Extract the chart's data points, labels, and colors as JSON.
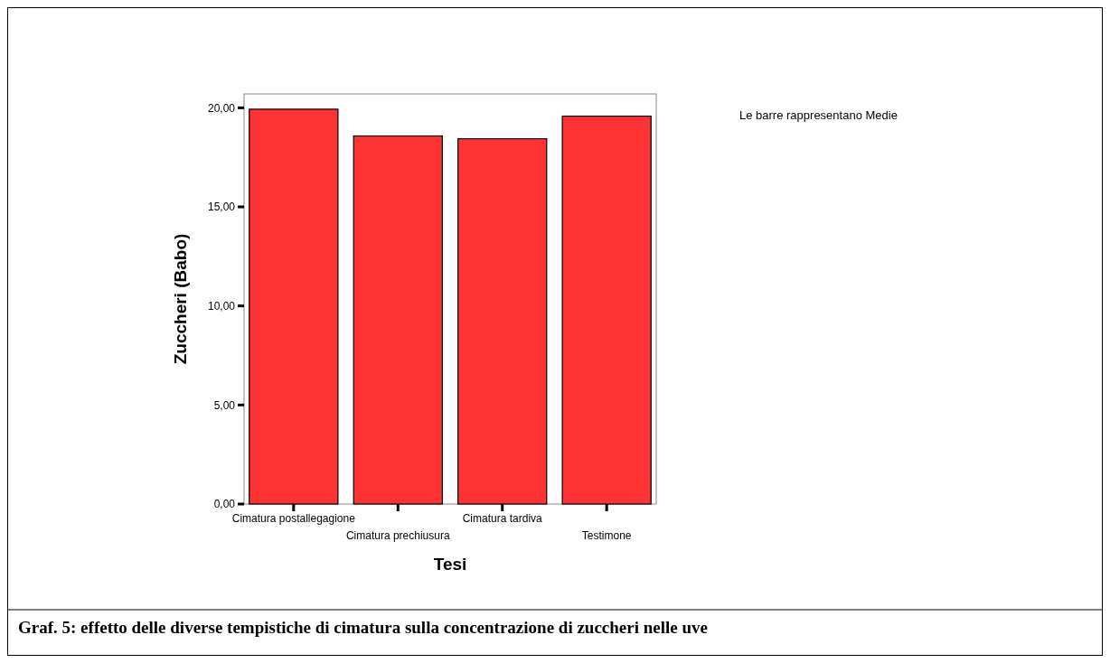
{
  "chart_data": {
    "type": "bar",
    "xlabel": "Tesi",
    "ylabel": "Zuccheri (Babo)",
    "categories": [
      "Cimatura postallegagione",
      "Cimatura prechiusura",
      "Cimatura tardiva",
      "Testimone"
    ],
    "values": [
      19.93,
      18.58,
      18.44,
      19.58
    ],
    "color": "#ff3333",
    "ylim": [
      0,
      20.7
    ],
    "yticks": [
      {
        "value": 0,
        "label": "0,00"
      },
      {
        "value": 5,
        "label": "5,00"
      },
      {
        "value": 10,
        "label": "10,00"
      },
      {
        "value": 15,
        "label": "15,00"
      },
      {
        "value": 20,
        "label": "20,00"
      }
    ],
    "grid": false,
    "annotations": [
      "Le barre rappresentano Medie",
      "Graf. 5: effetto delle diverse tempistiche di cimatura sulla concentrazione di zuccheri nelle uve"
    ]
  }
}
